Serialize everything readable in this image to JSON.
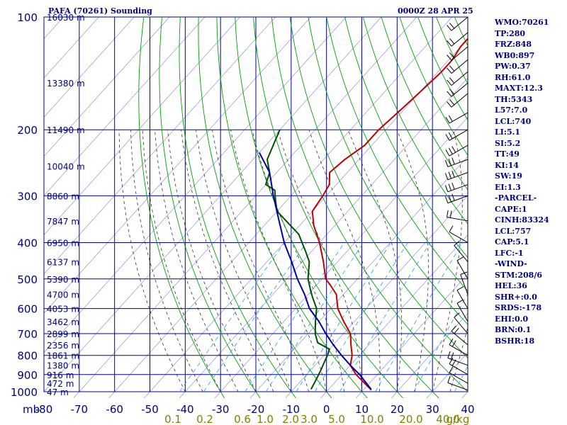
{
  "header": {
    "title": "PAFA (70261) Sounding",
    "valid_time": "0000Z 28 APR 25"
  },
  "stats": [
    "WMO:70261",
    "TP:280",
    "FRZ:848",
    "WB0:897",
    "PW:0.37",
    "RH:61.0",
    "MAXT:12.3",
    "TH:5343",
    "L57:7.0",
    "LCL:740",
    "LI:5.1",
    "SI:5.2",
    "TT:49",
    "KI:14",
    "SW:19",
    "EI:1.3",
    "-PARCEL-",
    "CAPE:1",
    "CINH:83324",
    "LCL:757",
    "CAP:5.1",
    "LFC:-1",
    "-WIND-",
    "STM:208/6",
    "HEL:36",
    "SHR+:0.0",
    "SRDS:-178",
    "EHI:0.0",
    "BRN:0.1",
    "BSHR:18"
  ],
  "colors": {
    "grid": "#0000a0",
    "label": "#000080",
    "dry_adiabat": "#00a000",
    "moist_adiabat": "#303030",
    "mixing_ratio": "#20a0d0",
    "temperature": "#c00000",
    "dewpoint": "#005000",
    "parcel": "#0000a0",
    "wind": "#000000",
    "mixing_label": "#808000"
  },
  "chart_data": {
    "type": "line",
    "title": "PAFA (70261) Sounding",
    "xlabel": "",
    "ylabel": "mb",
    "ylog": true,
    "xlim": [
      -80,
      40
    ],
    "ylim": [
      1000,
      100
    ],
    "x_ticks": [
      -80,
      -70,
      -60,
      -50,
      -40,
      -30,
      -20,
      -10,
      0,
      10,
      20,
      30,
      40
    ],
    "y_ticks": [
      100,
      200,
      300,
      400,
      500,
      600,
      700,
      800,
      900,
      1000
    ],
    "y_label_text": "mb",
    "height_labels": [
      {
        "p": 100,
        "text": "16030 m"
      },
      {
        "p": 150,
        "text": "13380 m"
      },
      {
        "p": 200,
        "text": "11490 m"
      },
      {
        "p": 250,
        "text": "10040 m"
      },
      {
        "p": 300,
        "text": "8860 m"
      },
      {
        "p": 350,
        "text": "7847 m"
      },
      {
        "p": 400,
        "text": "6950 m"
      },
      {
        "p": 450,
        "text": "6137 m"
      },
      {
        "p": 500,
        "text": "5390 m"
      },
      {
        "p": 550,
        "text": "4700 m"
      },
      {
        "p": 600,
        "text": "4053 m"
      },
      {
        "p": 650,
        "text": "3462 m"
      },
      {
        "p": 700,
        "text": "2899 m"
      },
      {
        "p": 750,
        "text": "2356 m"
      },
      {
        "p": 800,
        "text": "1861 m"
      },
      {
        "p": 850,
        "text": "1380 m"
      },
      {
        "p": 900,
        "text": "916 m"
      },
      {
        "p": 950,
        "text": "472 m"
      },
      {
        "p": 1000,
        "text": "47 m"
      }
    ],
    "mixing_ratio_labels": [
      "0.1",
      "0.2",
      "0.6",
      "1.0",
      "2.0",
      "3.0",
      "5.0",
      "10.0",
      "20.0",
      "40.0",
      "g/kg"
    ],
    "mixing_ratio_values": [
      0.1,
      0.2,
      0.6,
      1.0,
      2.0,
      3.0,
      5.0,
      10.0,
      20.0,
      40.0
    ],
    "series": [
      {
        "name": "Temperature",
        "points": [
          [
            12.3,
            990
          ],
          [
            4,
            900
          ],
          [
            0,
            850
          ],
          [
            -2,
            800
          ],
          [
            -5,
            750
          ],
          [
            -8,
            700
          ],
          [
            -13,
            650
          ],
          [
            -18,
            600
          ],
          [
            -22,
            550
          ],
          [
            -26,
            520
          ],
          [
            -29,
            500
          ],
          [
            -34,
            450
          ],
          [
            -40,
            400
          ],
          [
            -46,
            360
          ],
          [
            -50,
            330
          ],
          [
            -51,
            300
          ],
          [
            -52,
            280
          ],
          [
            -55,
            260
          ],
          [
            -54,
            240
          ],
          [
            -52,
            220
          ],
          [
            -52,
            200
          ],
          [
            -51,
            180
          ],
          [
            -50,
            160
          ],
          [
            -49,
            140
          ],
          [
            -49,
            130
          ],
          [
            -50,
            120
          ],
          [
            -50,
            110
          ],
          [
            -51,
            100
          ]
        ]
      },
      {
        "name": "Dewpoint",
        "points": [
          [
            -5,
            985
          ],
          [
            -6,
            930
          ],
          [
            -7,
            880
          ],
          [
            -8,
            840
          ],
          [
            -9,
            800
          ],
          [
            -10,
            770
          ],
          [
            -15,
            740
          ],
          [
            -18,
            700
          ],
          [
            -21,
            650
          ],
          [
            -24,
            600
          ],
          [
            -28,
            560
          ],
          [
            -30,
            540
          ],
          [
            -34,
            500
          ],
          [
            -38,
            450
          ],
          [
            -42,
            420
          ],
          [
            -48,
            380
          ],
          [
            -55,
            350
          ],
          [
            -60,
            330
          ],
          [
            -63,
            310
          ],
          [
            -66,
            290
          ],
          [
            -70,
            280
          ],
          [
            -72,
            260
          ],
          [
            -76,
            240
          ],
          [
            -80,
            200
          ]
        ]
      },
      {
        "name": "Parcel",
        "points": [
          [
            12,
            985
          ],
          [
            5,
            900
          ],
          [
            0,
            850
          ],
          [
            -5,
            800
          ],
          [
            -10,
            750
          ],
          [
            -15,
            700
          ],
          [
            -20,
            650
          ],
          [
            -26,
            600
          ],
          [
            -31,
            550
          ],
          [
            -37,
            500
          ],
          [
            -43,
            450
          ],
          [
            -50,
            400
          ],
          [
            -57,
            350
          ],
          [
            -65,
            300
          ],
          [
            -72,
            260
          ],
          [
            -80,
            230
          ]
        ]
      }
    ],
    "wind_barbs": [
      {
        "p": 990,
        "dir": 290,
        "spd": 5
      },
      {
        "p": 950,
        "dir": 300,
        "spd": 10
      },
      {
        "p": 900,
        "dir": 300,
        "spd": 15
      },
      {
        "p": 850,
        "dir": 290,
        "spd": 20
      },
      {
        "p": 800,
        "dir": 300,
        "spd": 15
      },
      {
        "p": 750,
        "dir": 310,
        "spd": 15
      },
      {
        "p": 700,
        "dir": 320,
        "spd": 10
      },
      {
        "p": 650,
        "dir": 330,
        "spd": 10
      },
      {
        "p": 600,
        "dir": 330,
        "spd": 10
      },
      {
        "p": 550,
        "dir": 340,
        "spd": 10
      },
      {
        "p": 500,
        "dir": 330,
        "spd": 10
      },
      {
        "p": 450,
        "dir": 320,
        "spd": 10
      },
      {
        "p": 400,
        "dir": 300,
        "spd": 10
      },
      {
        "p": 350,
        "dir": 280,
        "spd": 15
      },
      {
        "p": 300,
        "dir": 250,
        "spd": 25
      },
      {
        "p": 280,
        "dir": 250,
        "spd": 25
      },
      {
        "p": 260,
        "dir": 250,
        "spd": 25
      },
      {
        "p": 240,
        "dir": 250,
        "spd": 25
      },
      {
        "p": 220,
        "dir": 240,
        "spd": 25
      },
      {
        "p": 200,
        "dir": 240,
        "spd": 20
      },
      {
        "p": 180,
        "dir": 240,
        "spd": 20
      },
      {
        "p": 160,
        "dir": 230,
        "spd": 20
      },
      {
        "p": 150,
        "dir": 230,
        "spd": 20
      },
      {
        "p": 140,
        "dir": 230,
        "spd": 20
      },
      {
        "p": 130,
        "dir": 230,
        "spd": 20
      },
      {
        "p": 120,
        "dir": 230,
        "spd": 20
      },
      {
        "p": 110,
        "dir": 230,
        "spd": 20
      },
      {
        "p": 100,
        "dir": 230,
        "spd": 20
      }
    ]
  }
}
